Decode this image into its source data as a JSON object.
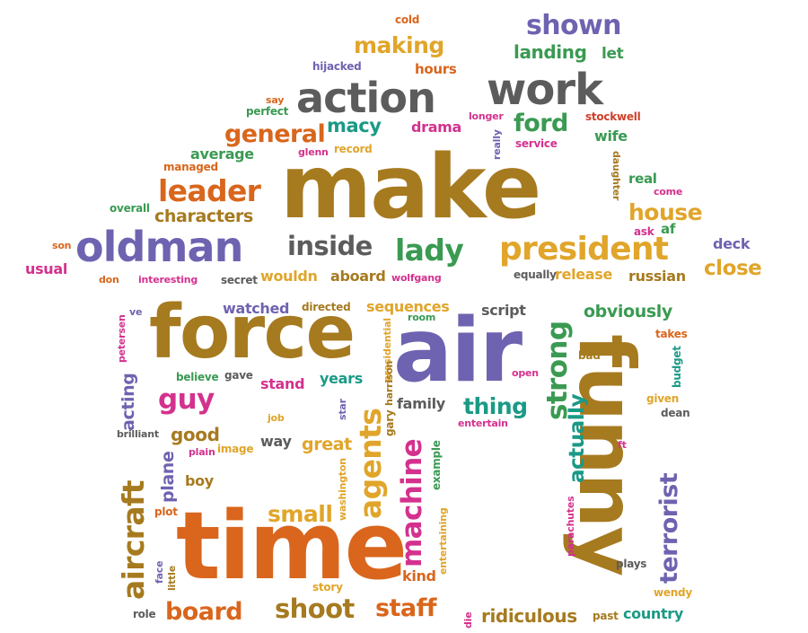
{
  "palette": {
    "brown": "#a67a1f",
    "gray": "#5c5c5c",
    "purple": "#6e63b0",
    "orange": "#d9661c",
    "green": "#3a9a52",
    "teal": "#1a9a86",
    "gold": "#e0a52a",
    "magenta": "#d4318e",
    "red": "#cf3f2a"
  },
  "words": [
    {
      "text": "make",
      "color": "brown"
    },
    {
      "text": "time",
      "color": "orange"
    },
    {
      "text": "air",
      "color": "purple"
    },
    {
      "text": "force",
      "color": "brown"
    },
    {
      "text": "funny",
      "color": "brown"
    },
    {
      "text": "action",
      "color": "gray"
    },
    {
      "text": "work",
      "color": "gray"
    },
    {
      "text": "oldman",
      "color": "purple"
    },
    {
      "text": "president",
      "color": "gold"
    },
    {
      "text": "shown",
      "color": "purple"
    },
    {
      "text": "making",
      "color": "gold"
    },
    {
      "text": "general",
      "color": "orange"
    },
    {
      "text": "leader",
      "color": "orange"
    },
    {
      "text": "inside",
      "color": "gray"
    },
    {
      "text": "lady",
      "color": "green"
    },
    {
      "text": "house",
      "color": "gold"
    },
    {
      "text": "close",
      "color": "gold"
    },
    {
      "text": "characters",
      "color": "brown"
    },
    {
      "text": "ford",
      "color": "green"
    },
    {
      "text": "macy",
      "color": "teal"
    },
    {
      "text": "landing",
      "color": "green"
    },
    {
      "text": "let",
      "color": "green"
    },
    {
      "text": "average",
      "color": "green"
    },
    {
      "text": "drama",
      "color": "magenta"
    },
    {
      "text": "wife",
      "color": "green"
    },
    {
      "text": "stockwell",
      "color": "red"
    },
    {
      "text": "hours",
      "color": "orange"
    },
    {
      "text": "hijacked",
      "color": "purple"
    },
    {
      "text": "cold",
      "color": "orange"
    },
    {
      "text": "say",
      "color": "orange"
    },
    {
      "text": "perfect",
      "color": "green"
    },
    {
      "text": "longer",
      "color": "magenta"
    },
    {
      "text": "record",
      "color": "gold"
    },
    {
      "text": "glenn",
      "color": "magenta"
    },
    {
      "text": "service",
      "color": "magenta"
    },
    {
      "text": "really",
      "color": "purple"
    },
    {
      "text": "managed",
      "color": "orange"
    },
    {
      "text": "real",
      "color": "green"
    },
    {
      "text": "come",
      "color": "magenta"
    },
    {
      "text": "daughter",
      "color": "brown"
    },
    {
      "text": "overall",
      "color": "green"
    },
    {
      "text": "ask",
      "color": "magenta"
    },
    {
      "text": "af",
      "color": "green"
    },
    {
      "text": "deck",
      "color": "purple"
    },
    {
      "text": "son",
      "color": "orange"
    },
    {
      "text": "usual",
      "color": "magenta"
    },
    {
      "text": "don",
      "color": "orange"
    },
    {
      "text": "interesting",
      "color": "magenta"
    },
    {
      "text": "secret",
      "color": "gray"
    },
    {
      "text": "wouldn",
      "color": "gold"
    },
    {
      "text": "aboard",
      "color": "brown"
    },
    {
      "text": "wolfgang",
      "color": "magenta"
    },
    {
      "text": "equally",
      "color": "gray"
    },
    {
      "text": "release",
      "color": "gold"
    },
    {
      "text": "russian",
      "color": "brown"
    },
    {
      "text": "watched",
      "color": "purple"
    },
    {
      "text": "directed",
      "color": "brown"
    },
    {
      "text": "sequences",
      "color": "gold"
    },
    {
      "text": "room",
      "color": "green"
    },
    {
      "text": "script",
      "color": "gray"
    },
    {
      "text": "obviously",
      "color": "green"
    },
    {
      "text": "strong",
      "color": "green"
    },
    {
      "text": "ve",
      "color": "purple"
    },
    {
      "text": "petersen",
      "color": "magenta"
    },
    {
      "text": "acting",
      "color": "purple"
    },
    {
      "text": "believe",
      "color": "green"
    },
    {
      "text": "gave",
      "color": "gray"
    },
    {
      "text": "stand",
      "color": "magenta"
    },
    {
      "text": "years",
      "color": "teal"
    },
    {
      "text": "presidential",
      "color": "gold"
    },
    {
      "text": "harrison",
      "color": "brown"
    },
    {
      "text": "open",
      "color": "magenta"
    },
    {
      "text": "bad",
      "color": "brown"
    },
    {
      "text": "takes",
      "color": "orange"
    },
    {
      "text": "budget",
      "color": "teal"
    },
    {
      "text": "guy",
      "color": "magenta"
    },
    {
      "text": "star",
      "color": "purple"
    },
    {
      "text": "thing",
      "color": "teal"
    },
    {
      "text": "family",
      "color": "gray"
    },
    {
      "text": "given",
      "color": "gold"
    },
    {
      "text": "dean",
      "color": "gray"
    },
    {
      "text": "job",
      "color": "gold"
    },
    {
      "text": "gary",
      "color": "brown"
    },
    {
      "text": "agents",
      "color": "gold"
    },
    {
      "text": "entertain",
      "color": "magenta"
    },
    {
      "text": "actually",
      "color": "teal"
    },
    {
      "text": "terrorist",
      "color": "purple"
    },
    {
      "text": "brilliant",
      "color": "gray"
    },
    {
      "text": "good",
      "color": "brown"
    },
    {
      "text": "way",
      "color": "gray"
    },
    {
      "text": "great",
      "color": "gold"
    },
    {
      "text": "example",
      "color": "green"
    },
    {
      "text": "ft",
      "color": "magenta"
    },
    {
      "text": "plain",
      "color": "magenta"
    },
    {
      "text": "image",
      "color": "gold"
    },
    {
      "text": "machine",
      "color": "magenta"
    },
    {
      "text": "aircraft",
      "color": "brown"
    },
    {
      "text": "plane",
      "color": "purple"
    },
    {
      "text": "boy",
      "color": "brown"
    },
    {
      "text": "washington",
      "color": "gold"
    },
    {
      "text": "small",
      "color": "gold"
    },
    {
      "text": "parachutes",
      "color": "magenta"
    },
    {
      "text": "plot",
      "color": "orange"
    },
    {
      "text": "kind",
      "color": "orange"
    },
    {
      "text": "entertaining",
      "color": "gold"
    },
    {
      "text": "face",
      "color": "purple"
    },
    {
      "text": "little",
      "color": "brown"
    },
    {
      "text": "story",
      "color": "gold"
    },
    {
      "text": "plays",
      "color": "gray"
    },
    {
      "text": "wendy",
      "color": "gold"
    },
    {
      "text": "role",
      "color": "gray"
    },
    {
      "text": "board",
      "color": "orange"
    },
    {
      "text": "shoot",
      "color": "brown"
    },
    {
      "text": "staff",
      "color": "orange"
    },
    {
      "text": "die",
      "color": "magenta"
    },
    {
      "text": "ridiculous",
      "color": "brown"
    },
    {
      "text": "past",
      "color": "brown"
    },
    {
      "text": "country",
      "color": "teal"
    }
  ]
}
